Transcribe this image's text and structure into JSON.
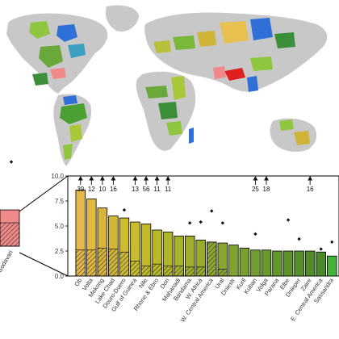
{
  "chart_data": {
    "type": "bar",
    "ylim": [
      0,
      10
    ],
    "yticks": [
      "0.0",
      "2.5",
      "5.0",
      "7.5",
      "10.0"
    ],
    "categories": [
      "Ob",
      "Volta",
      "Mekong",
      "Lake Chad",
      "Douro-Duero",
      "Gulf of Guinea",
      "Nile",
      "Rhone & Ebro",
      "Don",
      "Mahanadi",
      "Bandama",
      "W. Africa",
      "W. Central America",
      "Ural",
      "Dniestr",
      "Kuril",
      "Kuban",
      "Volga",
      "Parana",
      "Elbe",
      "Dnieper",
      "Zaire",
      "E. Central America",
      "Sassandra"
    ],
    "values": [
      8.6,
      7.7,
      6.8,
      6.0,
      5.8,
      5.4,
      5.2,
      4.6,
      4.4,
      4.0,
      4.0,
      3.6,
      3.4,
      3.3,
      3.1,
      2.8,
      2.6,
      2.6,
      2.5,
      2.5,
      2.5,
      2.5,
      2.4,
      2.0
    ],
    "hatched": [
      2.6,
      2.6,
      2.8,
      2.7,
      2.4,
      1.5,
      1.0,
      1.2,
      1.0,
      1.0,
      0.9,
      0.9,
      3.4,
      0.7,
      0.0,
      0.0,
      0.0,
      0.0,
      0.0,
      0.0,
      0.0,
      0.0,
      0.0,
      0.0
    ],
    "colors": [
      "#e5b84a",
      "#e0b842",
      "#d8b33d",
      "#d2b63a",
      "#cfbb33",
      "#c7bb2e",
      "#c0b92a",
      "#b8b828",
      "#b0b428",
      "#a8b12a",
      "#a0ae2c",
      "#98ab2e",
      "#90a830",
      "#88a530",
      "#80a230",
      "#789f2f",
      "#719c2e",
      "#6a992d",
      "#63962c",
      "#5c932b",
      "#56902a",
      "#508d29",
      "#4a8a28",
      "#44b23a"
    ],
    "points": [
      {
        "category": "Douro-Duero",
        "value": 6.6
      },
      {
        "category": "Bandama",
        "value": 5.3
      },
      {
        "category": "W. Africa",
        "value": 5.4
      },
      {
        "category": "W. Central America",
        "value": 6.5
      },
      {
        "category": "Ural",
        "value": 5.3
      },
      {
        "category": "Kuban",
        "value": 4.2
      },
      {
        "category": "Elbe",
        "value": 5.6
      },
      {
        "category": "Dnieper",
        "value": 3.7
      },
      {
        "category": "E. Central America",
        "value": 2.7
      },
      {
        "category": "Sassandra",
        "value": 3.4
      }
    ],
    "annotations": [
      {
        "category": "Ob",
        "text": "39"
      },
      {
        "category": "Volta",
        "text": "12"
      },
      {
        "category": "Mekong",
        "text": "10"
      },
      {
        "category": "Lake Chad",
        "text": "16"
      },
      {
        "category": "Gulf of Guinea",
        "text": "13"
      },
      {
        "category": "Nile",
        "text": "56"
      },
      {
        "category": "Rhone & Ebro",
        "text": "11"
      },
      {
        "category": "Don",
        "text": "11"
      },
      {
        "category": "Kuban",
        "text": "25"
      },
      {
        "category": "Volga",
        "text": "18"
      },
      {
        "category": "Zaire",
        "text": "16"
      }
    ],
    "left_panel": {
      "categories": [
        "Godavari"
      ],
      "values": [
        3.1
      ],
      "hatched": [
        2.0
      ],
      "colors": [
        "#f08a8a"
      ],
      "points": [
        {
          "category": "Godavari",
          "value": 7.2
        }
      ]
    }
  }
}
